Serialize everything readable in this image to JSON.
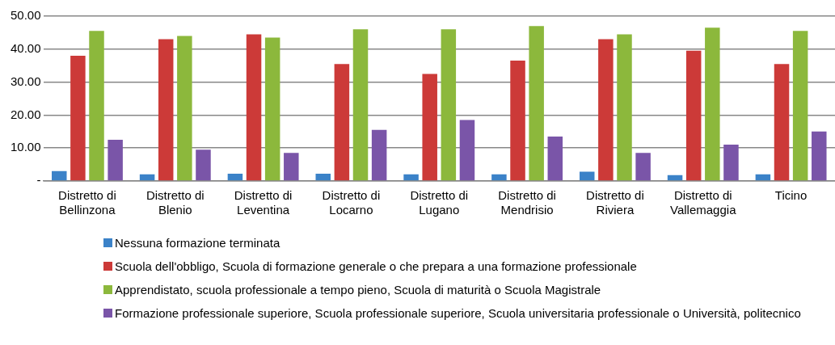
{
  "chart_data": {
    "type": "bar",
    "categories": [
      "Distretto di Bellinzona",
      "Distretto di Blenio",
      "Distretto di Leventina",
      "Distretto di Locarno",
      "Distretto di Lugano",
      "Distretto di Mendrisio",
      "Distretto di Riviera",
      "Distretto di Vallemaggia",
      "Ticino"
    ],
    "series": [
      {
        "name": "Nessuna formazione terminata",
        "color": "#3b82c8",
        "values": [
          3,
          2,
          2.2,
          2.2,
          2,
          2,
          2.8,
          1.8,
          2
        ]
      },
      {
        "name": "Scuola dell'obbligo, Scuola di formazione generale o che prepara a una formazione professionale",
        "color": "#cc3a38",
        "values": [
          38,
          43,
          44.5,
          35.5,
          32.5,
          36.5,
          43,
          39.5,
          35.5
        ]
      },
      {
        "name": "Apprendistato, scuola professionale a tempo pieno, Scuola di maturità o Scuola Magistrale",
        "color": "#8cb83c",
        "values": [
          45.5,
          44,
          43.5,
          46,
          46,
          47,
          44.5,
          46.5,
          45.5
        ]
      },
      {
        "name": "Formazione professionale superiore, Scuola professionale superiore, Scuola universitaria professionale o Università, politecnico",
        "color": "#7a55a8",
        "values": [
          12.5,
          9.5,
          8.5,
          15.5,
          18.5,
          13.5,
          8.5,
          11,
          15
        ]
      }
    ],
    "ylim": [
      0,
      50
    ],
    "yticks": [
      {
        "value": 0,
        "label": "-"
      },
      {
        "value": 10,
        "label": "10.00"
      },
      {
        "value": 20,
        "label": "20.00"
      },
      {
        "value": 30,
        "label": "30.00"
      },
      {
        "value": 40,
        "label": "40.00"
      },
      {
        "value": 50,
        "label": "50.00"
      }
    ],
    "grid": "y",
    "legend": "bottom"
  }
}
